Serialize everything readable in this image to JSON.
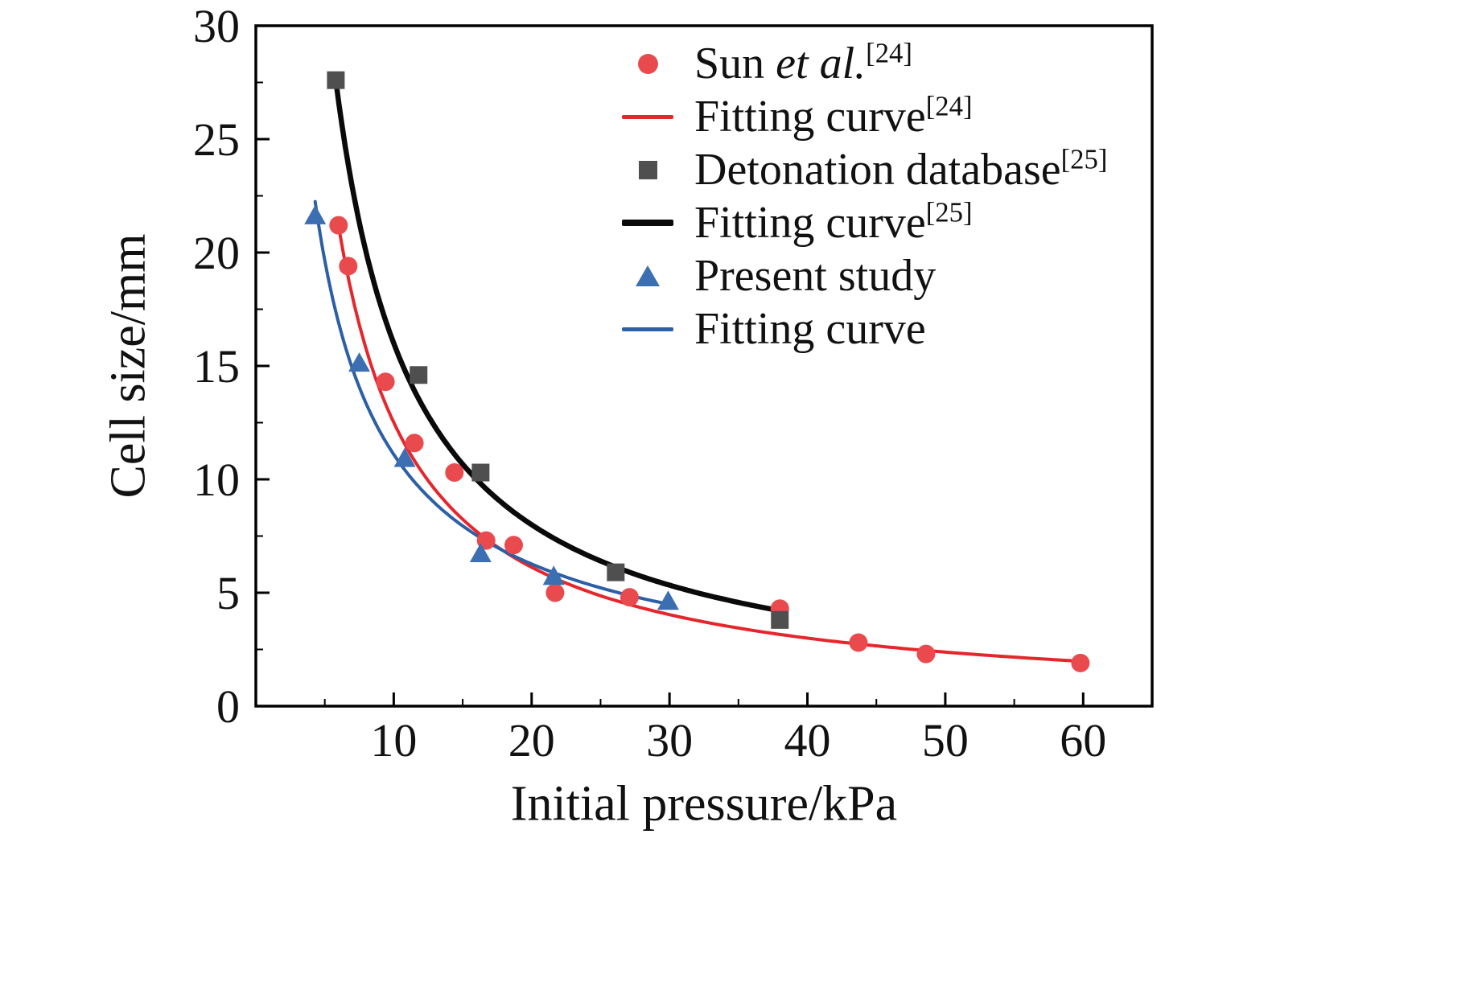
{
  "figure_title": "",
  "chart_data": {
    "type": "scatter",
    "title": "",
    "xlabel": "Initial pressure/kPa",
    "ylabel": "Cell size/mm",
    "xlim": [
      0,
      65
    ],
    "ylim": [
      0,
      30
    ],
    "xticks": [
      10,
      20,
      30,
      40,
      50,
      60
    ],
    "yticks": [
      0,
      5,
      10,
      15,
      20,
      25,
      30
    ],
    "grid": false,
    "legend_position": "inside-top-right",
    "series": [
      {
        "name": "Sun et al.[24]",
        "type": "scatter",
        "marker": "circle",
        "color": "#e84a4e",
        "x": [
          6.0,
          6.7,
          9.4,
          11.5,
          14.4,
          16.7,
          18.7,
          21.7,
          27.1,
          38.0,
          43.7,
          48.6,
          59.8
        ],
        "y": [
          21.2,
          19.4,
          14.3,
          11.6,
          10.3,
          7.3,
          7.1,
          5.0,
          4.8,
          4.3,
          2.8,
          2.3,
          1.9
        ]
      },
      {
        "name": "Fitting curve[24]",
        "type": "fit",
        "model": "power",
        "color": "#e5262c",
        "A": 134,
        "n": 1.03,
        "range": [
          6.0,
          59.8
        ],
        "lw": 4
      },
      {
        "name": "Detonation database[25]",
        "type": "scatter",
        "marker": "square",
        "color": "#4f4f4f",
        "x": [
          5.8,
          11.8,
          16.3,
          26.1,
          38.0
        ],
        "y": [
          27.6,
          14.6,
          10.3,
          5.9,
          3.8
        ]
      },
      {
        "name": "Fitting curve[25]",
        "type": "fit",
        "model": "power",
        "color": "#0a0a0a",
        "A": 160,
        "n": 1.0,
        "range": [
          5.8,
          38.0
        ],
        "lw": 6.5
      },
      {
        "name": "Present study",
        "type": "scatter",
        "marker": "triangle",
        "color": "#3c6fb2",
        "x": [
          4.3,
          7.5,
          10.8,
          16.3,
          21.6,
          29.9
        ],
        "y": [
          21.6,
          15.1,
          10.9,
          6.7,
          5.7,
          4.6
        ]
      },
      {
        "name": "Fitting curve",
        "type": "fit",
        "model": "power",
        "color": "#2c5fa6",
        "A": 74,
        "n": 0.824,
        "range": [
          4.3,
          30.0
        ],
        "lw": 4
      }
    ]
  },
  "legend": {
    "items": [
      {
        "text": "Sun ",
        "italic": "et al.",
        "sup": "[24]"
      },
      {
        "text": "Fitting curve",
        "italic": "",
        "sup": "[24]"
      },
      {
        "text": "Detonation database",
        "italic": "",
        "sup": "[25]"
      },
      {
        "text": "Fitting curve",
        "italic": "",
        "sup": "[25]"
      },
      {
        "text": "Present study",
        "italic": "",
        "sup": ""
      },
      {
        "text": "Fitting curve",
        "italic": "",
        "sup": ""
      }
    ]
  }
}
